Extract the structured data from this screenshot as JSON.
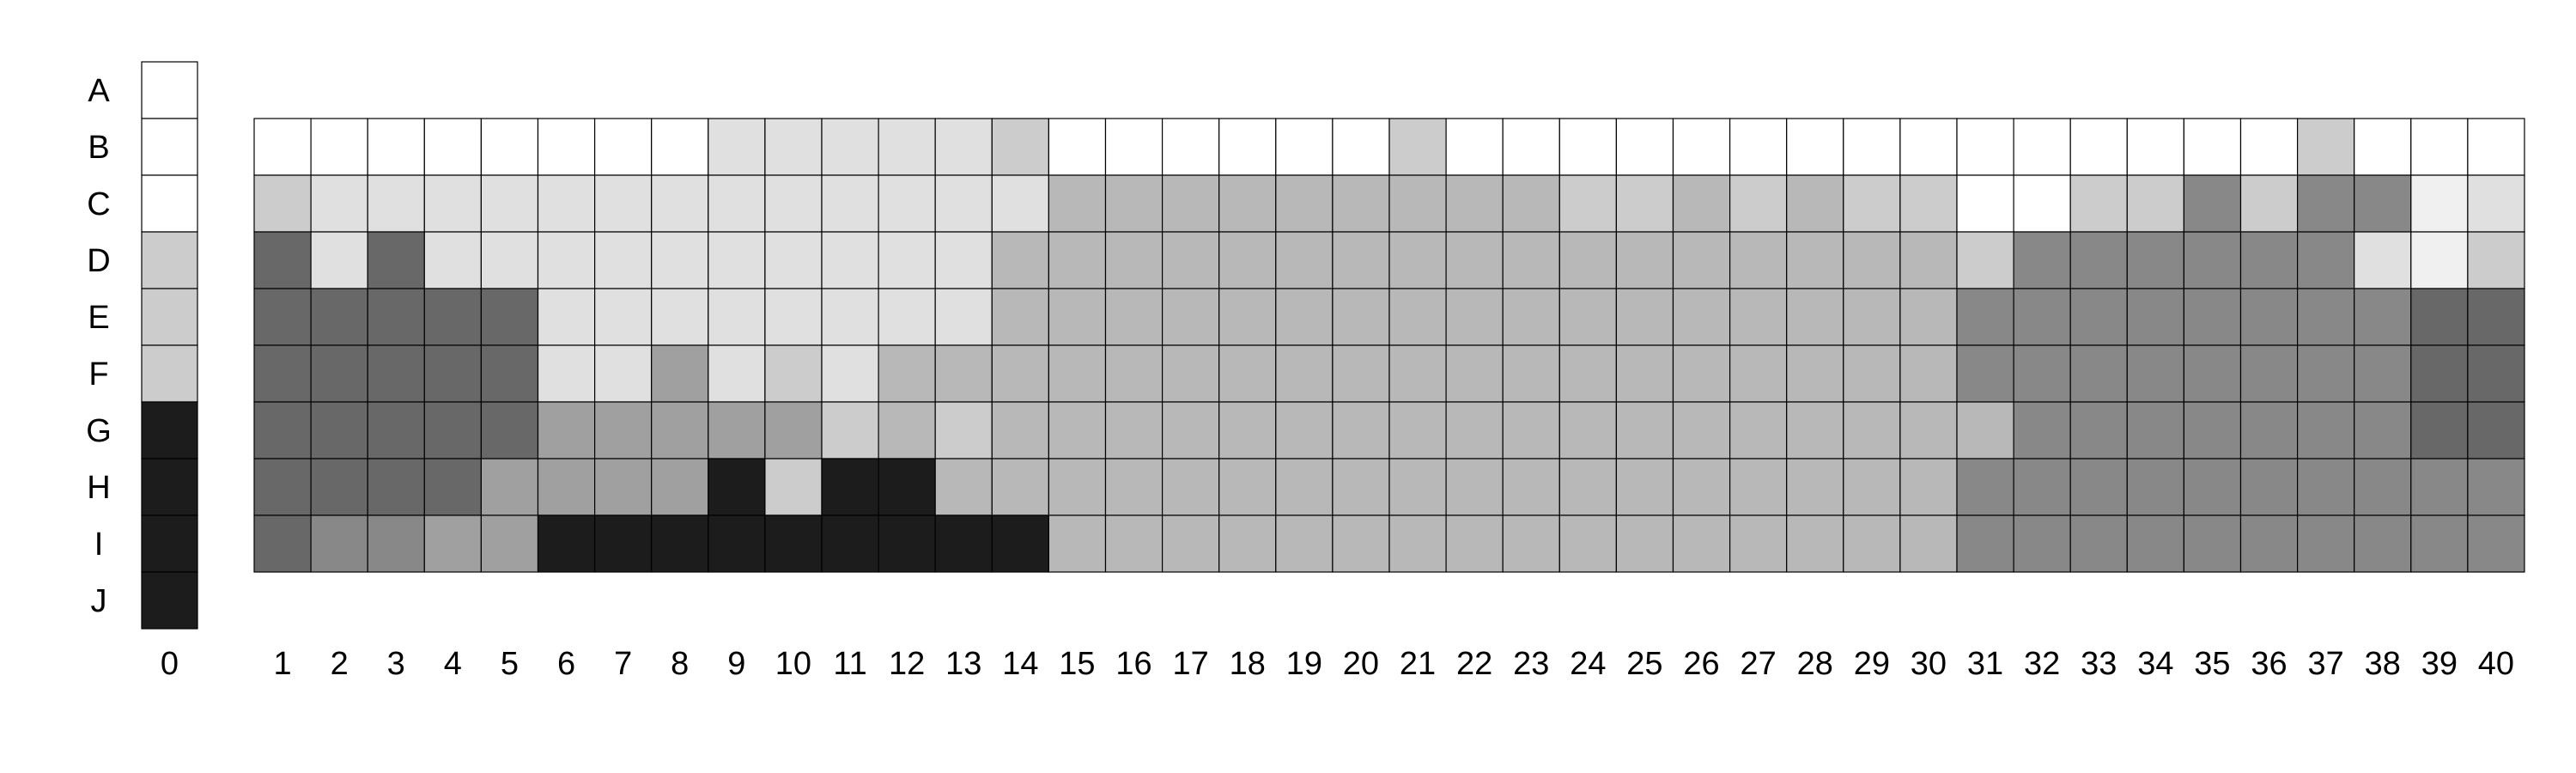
{
  "chart_data": {
    "type": "heatmap",
    "rows": [
      "A",
      "B",
      "C",
      "D",
      "E",
      "F",
      "G",
      "H",
      "I",
      "J"
    ],
    "columns": [
      "0",
      "1",
      "2",
      "3",
      "4",
      "5",
      "6",
      "7",
      "8",
      "9",
      "10",
      "11",
      "12",
      "13",
      "14",
      "15",
      "16",
      "17",
      "18",
      "19",
      "20",
      "21",
      "22",
      "23",
      "24",
      "25",
      "26",
      "27",
      "28",
      "29",
      "30",
      "31",
      "32",
      "33",
      "34",
      "35",
      "36",
      "37",
      "38",
      "39",
      "40"
    ],
    "reference_column": {
      "label": "0",
      "rows": [
        "A",
        "B",
        "C",
        "D",
        "E",
        "F",
        "G",
        "H",
        "I",
        "J"
      ],
      "colors": [
        "#ffffff",
        "#ffffff",
        "#ffffff",
        "#cccccc",
        "#cccccc",
        "#cccccc",
        "#1c1c1c",
        "#1c1c1c",
        "#1c1c1c",
        "#1c1c1c"
      ]
    },
    "grid_rows": [
      "B",
      "C",
      "D",
      "E",
      "F",
      "G",
      "H",
      "I"
    ],
    "grid_colors": [
      [
        "#ffffff",
        "#ffffff",
        "#ffffff",
        "#ffffff",
        "#ffffff",
        "#ffffff",
        "#ffffff",
        "#ffffff",
        "#e0e0e0",
        "#e0e0e0",
        "#e0e0e0",
        "#e0e0e0",
        "#e0e0e0",
        "#cccccc",
        "#ffffff",
        "#ffffff",
        "#ffffff",
        "#ffffff",
        "#ffffff",
        "#ffffff",
        "#cccccc",
        "#ffffff",
        "#ffffff",
        "#ffffff",
        "#ffffff",
        "#ffffff",
        "#ffffff",
        "#ffffff",
        "#ffffff",
        "#ffffff",
        "#ffffff",
        "#ffffff",
        "#ffffff",
        "#ffffff",
        "#ffffff",
        "#ffffff",
        "#cccccc",
        "#ffffff",
        "#ffffff",
        "#ffffff"
      ],
      [
        "#cccccc",
        "#e0e0e0",
        "#e0e0e0",
        "#e0e0e0",
        "#e0e0e0",
        "#e0e0e0",
        "#e0e0e0",
        "#e0e0e0",
        "#e0e0e0",
        "#e0e0e0",
        "#e0e0e0",
        "#e0e0e0",
        "#e0e0e0",
        "#e0e0e0",
        "#b8b8b8",
        "#b8b8b8",
        "#b8b8b8",
        "#b8b8b8",
        "#b8b8b8",
        "#b8b8b8",
        "#b8b8b8",
        "#b8b8b8",
        "#b8b8b8",
        "#cccccc",
        "#cccccc",
        "#b8b8b8",
        "#cccccc",
        "#b8b8b8",
        "#cccccc",
        "#cccccc",
        "#ffffff",
        "#ffffff",
        "#cccccc",
        "#cccccc",
        "#888888",
        "#cccccc",
        "#888888",
        "#888888",
        "#f0f0f0",
        "#e0e0e0"
      ],
      [
        "#686868",
        "#e0e0e0",
        "#686868",
        "#e0e0e0",
        "#e0e0e0",
        "#e0e0e0",
        "#e0e0e0",
        "#e0e0e0",
        "#e0e0e0",
        "#e0e0e0",
        "#e0e0e0",
        "#e0e0e0",
        "#e0e0e0",
        "#b8b8b8",
        "#b8b8b8",
        "#b8b8b8",
        "#b8b8b8",
        "#b8b8b8",
        "#b8b8b8",
        "#b8b8b8",
        "#b8b8b8",
        "#b8b8b8",
        "#b8b8b8",
        "#b8b8b8",
        "#b8b8b8",
        "#b8b8b8",
        "#b8b8b8",
        "#b8b8b8",
        "#b8b8b8",
        "#b8b8b8",
        "#cccccc",
        "#888888",
        "#888888",
        "#888888",
        "#888888",
        "#888888",
        "#888888",
        "#e0e0e0",
        "#f0f0f0",
        "#cccccc"
      ],
      [
        "#686868",
        "#686868",
        "#686868",
        "#686868",
        "#686868",
        "#e0e0e0",
        "#e0e0e0",
        "#e0e0e0",
        "#e0e0e0",
        "#e0e0e0",
        "#e0e0e0",
        "#e0e0e0",
        "#e0e0e0",
        "#b8b8b8",
        "#b8b8b8",
        "#b8b8b8",
        "#b8b8b8",
        "#b8b8b8",
        "#b8b8b8",
        "#b8b8b8",
        "#b8b8b8",
        "#b8b8b8",
        "#b8b8b8",
        "#b8b8b8",
        "#b8b8b8",
        "#b8b8b8",
        "#b8b8b8",
        "#b8b8b8",
        "#b8b8b8",
        "#b8b8b8",
        "#888888",
        "#888888",
        "#888888",
        "#888888",
        "#888888",
        "#888888",
        "#888888",
        "#888888",
        "#686868",
        "#686868"
      ],
      [
        "#686868",
        "#686868",
        "#686868",
        "#686868",
        "#686868",
        "#e0e0e0",
        "#e0e0e0",
        "#a0a0a0",
        "#e0e0e0",
        "#cccccc",
        "#e0e0e0",
        "#b8b8b8",
        "#b8b8b8",
        "#b8b8b8",
        "#b8b8b8",
        "#b8b8b8",
        "#b8b8b8",
        "#b8b8b8",
        "#b8b8b8",
        "#b8b8b8",
        "#b8b8b8",
        "#b8b8b8",
        "#b8b8b8",
        "#b8b8b8",
        "#b8b8b8",
        "#b8b8b8",
        "#b8b8b8",
        "#b8b8b8",
        "#b8b8b8",
        "#b8b8b8",
        "#888888",
        "#888888",
        "#888888",
        "#888888",
        "#888888",
        "#888888",
        "#888888",
        "#888888",
        "#686868",
        "#686868"
      ],
      [
        "#686868",
        "#686868",
        "#686868",
        "#686868",
        "#686868",
        "#a0a0a0",
        "#a0a0a0",
        "#a0a0a0",
        "#a0a0a0",
        "#a0a0a0",
        "#cccccc",
        "#b8b8b8",
        "#cccccc",
        "#b8b8b8",
        "#b8b8b8",
        "#b8b8b8",
        "#b8b8b8",
        "#b8b8b8",
        "#b8b8b8",
        "#b8b8b8",
        "#b8b8b8",
        "#b8b8b8",
        "#b8b8b8",
        "#b8b8b8",
        "#b8b8b8",
        "#b8b8b8",
        "#b8b8b8",
        "#b8b8b8",
        "#b8b8b8",
        "#b8b8b8",
        "#b8b8b8",
        "#888888",
        "#888888",
        "#888888",
        "#888888",
        "#888888",
        "#888888",
        "#888888",
        "#686868",
        "#686868"
      ],
      [
        "#686868",
        "#686868",
        "#686868",
        "#686868",
        "#a0a0a0",
        "#a0a0a0",
        "#a0a0a0",
        "#a0a0a0",
        "#1c1c1c",
        "#cccccc",
        "#1c1c1c",
        "#1c1c1c",
        "#b8b8b8",
        "#b8b8b8",
        "#b8b8b8",
        "#b8b8b8",
        "#b8b8b8",
        "#b8b8b8",
        "#b8b8b8",
        "#b8b8b8",
        "#b8b8b8",
        "#b8b8b8",
        "#b8b8b8",
        "#b8b8b8",
        "#b8b8b8",
        "#b8b8b8",
        "#b8b8b8",
        "#b8b8b8",
        "#b8b8b8",
        "#b8b8b8",
        "#888888",
        "#888888",
        "#888888",
        "#888888",
        "#888888",
        "#888888",
        "#888888",
        "#888888",
        "#888888",
        "#888888"
      ],
      [
        "#686868",
        "#888888",
        "#888888",
        "#a0a0a0",
        "#a0a0a0",
        "#1c1c1c",
        "#1c1c1c",
        "#1c1c1c",
        "#1c1c1c",
        "#1c1c1c",
        "#1c1c1c",
        "#1c1c1c",
        "#1c1c1c",
        "#1c1c1c",
        "#b8b8b8",
        "#b8b8b8",
        "#b8b8b8",
        "#b8b8b8",
        "#b8b8b8",
        "#b8b8b8",
        "#b8b8b8",
        "#b8b8b8",
        "#b8b8b8",
        "#b8b8b8",
        "#b8b8b8",
        "#b8b8b8",
        "#b8b8b8",
        "#b8b8b8",
        "#b8b8b8",
        "#b8b8b8",
        "#888888",
        "#888888",
        "#888888",
        "#888888",
        "#888888",
        "#888888",
        "#888888",
        "#888888",
        "#888888",
        "#888888"
      ]
    ],
    "title": "",
    "xlabel": "",
    "ylabel": "",
    "grid": true,
    "legend": "none"
  }
}
